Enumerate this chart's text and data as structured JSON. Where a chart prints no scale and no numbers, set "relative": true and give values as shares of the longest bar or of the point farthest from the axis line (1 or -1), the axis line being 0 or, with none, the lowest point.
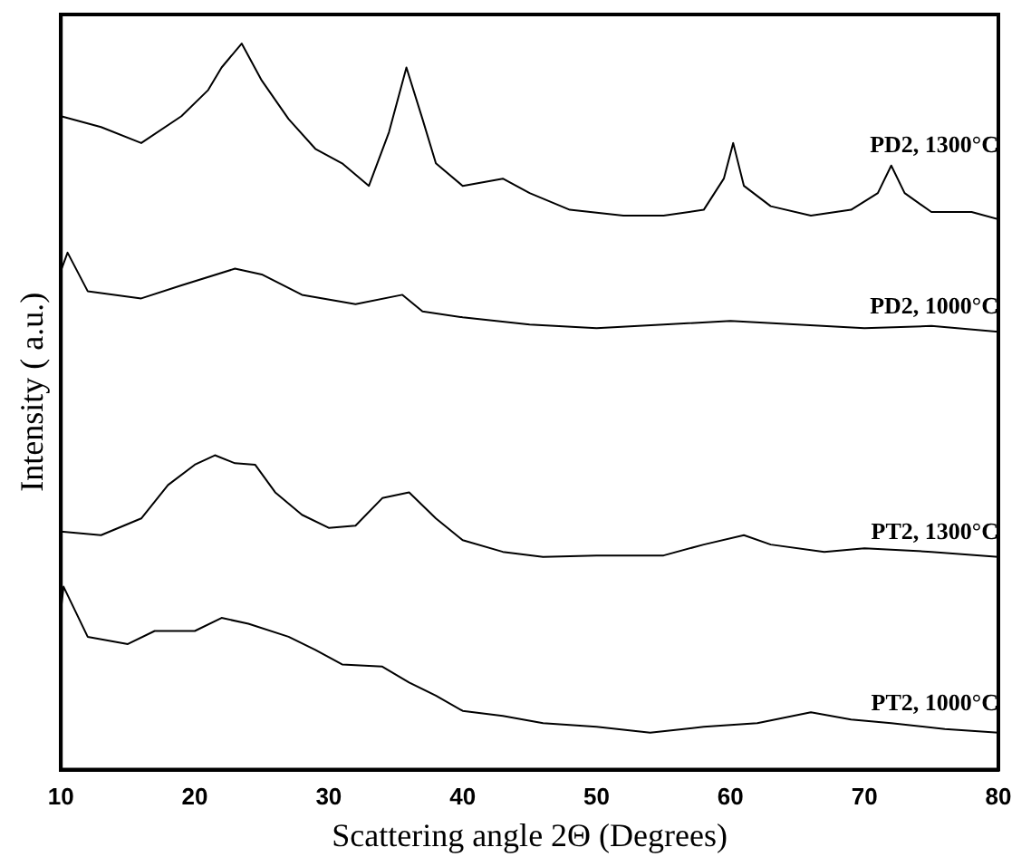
{
  "chart_data": {
    "type": "line",
    "xlabel": "Scattering angle 2Θ (Degrees)",
    "ylabel": "Intensity ( a.u.)",
    "relative": true,
    "xlim": [
      10,
      80
    ],
    "xticks": [
      10,
      20,
      30,
      40,
      50,
      60,
      70,
      80
    ],
    "tick_labels": "x",
    "series": [
      {
        "name": "PD2, 1300°C",
        "color": "#000000",
        "x": [
          10,
          13,
          16,
          19,
          21,
          22,
          23.5,
          25,
          27,
          29,
          31,
          33,
          34.5,
          35.8,
          37,
          38,
          40,
          43,
          45,
          48,
          52,
          55,
          58,
          59.5,
          60.2,
          61,
          63,
          66,
          69,
          71,
          72,
          73,
          75,
          78,
          80
        ],
        "values": [
          0.9,
          0.885,
          0.863,
          0.9,
          0.936,
          0.967,
          1,
          0.949,
          0.896,
          0.855,
          0.835,
          0.804,
          0.878,
          0.967,
          0.896,
          0.835,
          0.804,
          0.814,
          0.794,
          0.771,
          0.763,
          0.763,
          0.771,
          0.814,
          0.863,
          0.804,
          0.776,
          0.763,
          0.771,
          0.794,
          0.832,
          0.794,
          0.768,
          0.768,
          0.758
        ]
      },
      {
        "name": "PD2, 1000°C",
        "color": "#000000",
        "x": [
          10,
          10.5,
          12,
          16,
          19,
          23,
          25,
          28,
          32,
          35.5,
          37,
          40,
          45,
          50,
          55,
          60,
          65,
          70,
          75,
          80
        ],
        "values": [
          0.687,
          0.712,
          0.659,
          0.649,
          0.667,
          0.69,
          0.682,
          0.654,
          0.641,
          0.654,
          0.631,
          0.623,
          0.613,
          0.608,
          0.613,
          0.618,
          0.613,
          0.608,
          0.611,
          0.603
        ]
      },
      {
        "name": "PT2, 1300°C",
        "color": "#000000",
        "x": [
          10,
          13,
          16,
          18,
          20,
          21.5,
          23,
          24.5,
          26,
          28,
          30,
          32,
          34,
          36,
          38,
          40,
          43,
          46,
          50,
          55,
          58,
          61,
          63,
          67,
          70,
          75,
          80
        ],
        "values": [
          0.328,
          0.323,
          0.346,
          0.392,
          0.42,
          0.433,
          0.422,
          0.42,
          0.382,
          0.351,
          0.333,
          0.336,
          0.374,
          0.382,
          0.346,
          0.316,
          0.3,
          0.293,
          0.295,
          0.295,
          0.31,
          0.323,
          0.31,
          0.3,
          0.305,
          0.3,
          0.293
        ]
      },
      {
        "name": "PT2, 1000°C",
        "color": "#000000",
        "x": [
          10,
          10.2,
          12,
          15,
          17,
          20,
          22,
          24,
          27,
          29,
          31,
          34,
          36,
          38,
          40,
          43,
          46,
          50,
          54,
          58,
          62,
          66,
          69,
          72,
          76,
          80
        ],
        "values": [
          0.219,
          0.252,
          0.183,
          0.173,
          0.191,
          0.191,
          0.209,
          0.201,
          0.183,
          0.165,
          0.145,
          0.142,
          0.12,
          0.102,
          0.081,
          0.074,
          0.064,
          0.059,
          0.051,
          0.059,
          0.064,
          0.079,
          0.069,
          0.064,
          0.056,
          0.051
        ]
      }
    ]
  }
}
